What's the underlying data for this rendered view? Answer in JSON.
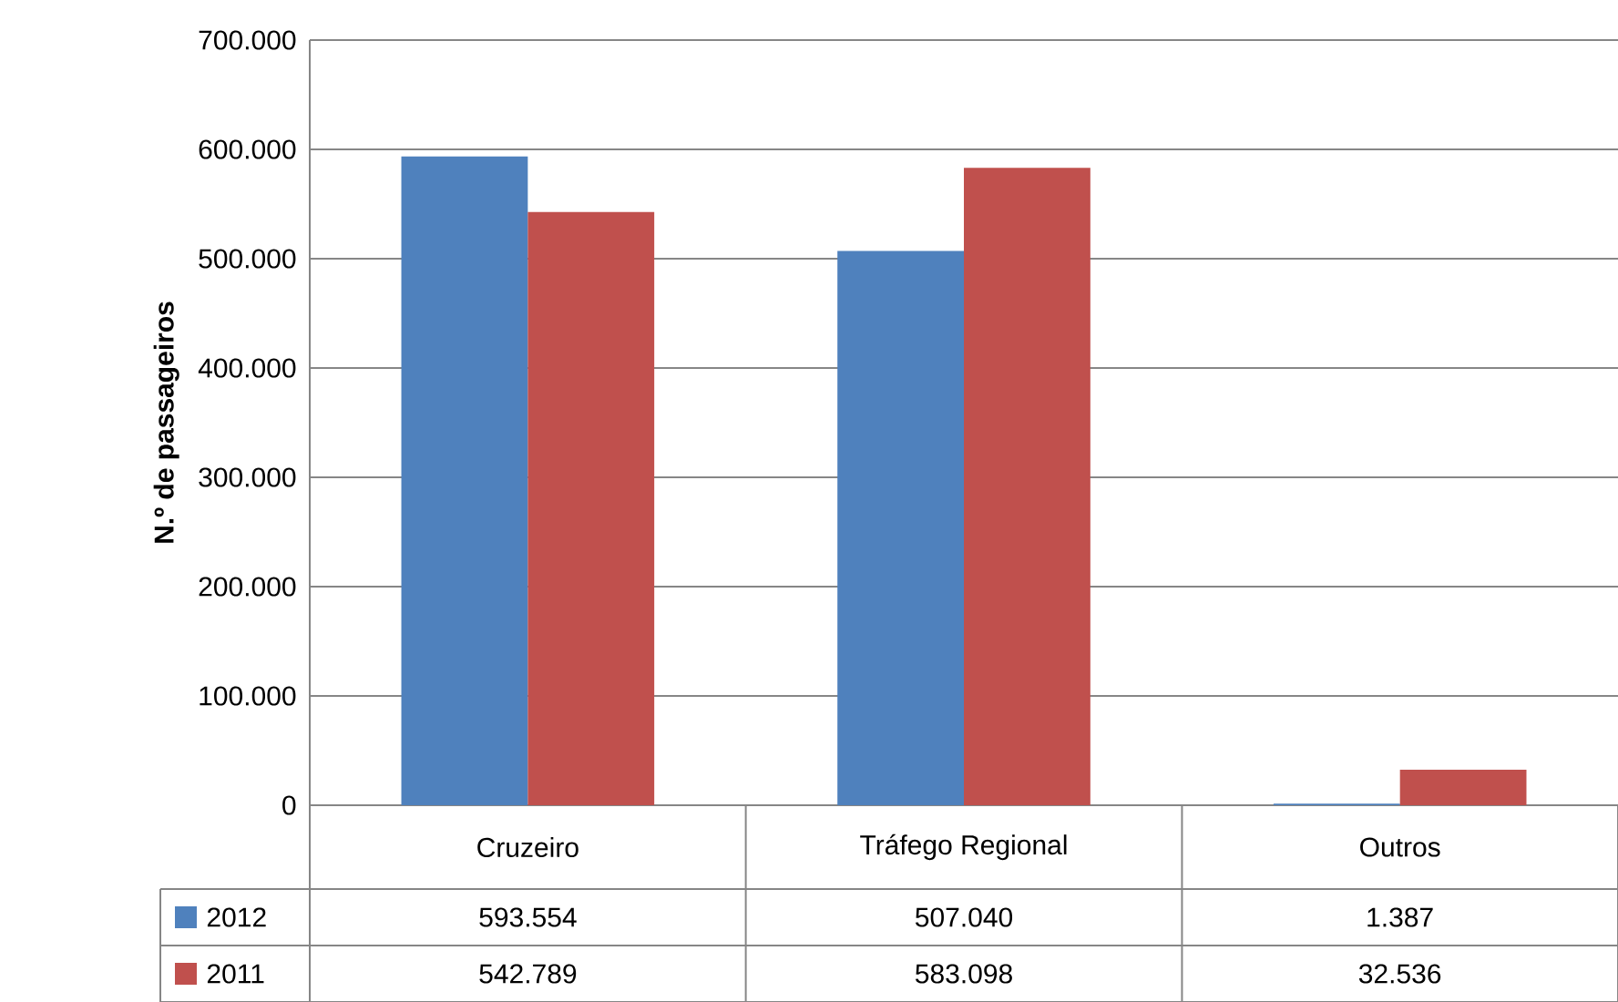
{
  "chart_data": {
    "type": "bar",
    "ylabel": "N.º de passageiros",
    "categories": [
      "Cruzeiro",
      "Tráfego Regional",
      "Outros"
    ],
    "series": [
      {
        "name": "2012",
        "color": "#4f81bd",
        "values": [
          593554,
          507040,
          1387
        ],
        "value_labels": [
          "593.554",
          "507.040",
          "1.387"
        ]
      },
      {
        "name": "2011",
        "color": "#c0504d",
        "values": [
          542789,
          583098,
          32536
        ],
        "value_labels": [
          "542.789",
          "583.098",
          "32.536"
        ]
      }
    ],
    "ylim": [
      0,
      700000
    ],
    "yticks": [
      {
        "value": 0,
        "label": "0"
      },
      {
        "value": 100000,
        "label": "100.000"
      },
      {
        "value": 200000,
        "label": "200.000"
      },
      {
        "value": 300000,
        "label": "300.000"
      },
      {
        "value": 400000,
        "label": "400.000"
      },
      {
        "value": 500000,
        "label": "500.000"
      },
      {
        "value": 600000,
        "label": "600.000"
      },
      {
        "value": 700000,
        "label": "700.000"
      }
    ],
    "grid": "y",
    "legend": "bottom"
  }
}
